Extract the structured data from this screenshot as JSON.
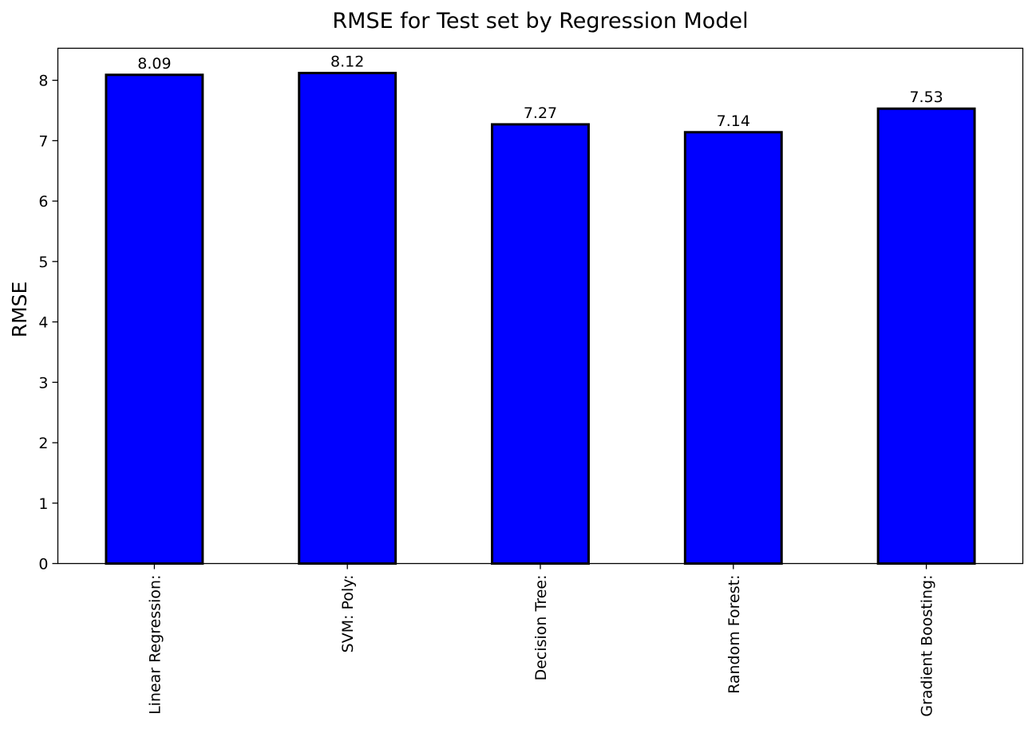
{
  "chart_data": {
    "type": "bar",
    "title": "RMSE for Test set by Regression Model",
    "xlabel": "",
    "ylabel": "RMSE",
    "categories": [
      "Linear Regression:",
      "SVM: Poly:",
      "Decision Tree:",
      "Random Forest:",
      "Gradient Boosting:"
    ],
    "values": [
      8.09,
      8.12,
      7.27,
      7.14,
      7.53
    ],
    "data_labels": [
      "8.09",
      "8.12",
      "7.27",
      "7.14",
      "7.53"
    ],
    "yticks": [
      0,
      1,
      2,
      3,
      4,
      5,
      6,
      7,
      8
    ],
    "ylim": [
      0,
      8.53
    ],
    "grid": false,
    "legend": "none",
    "bar_color": "#0000ff",
    "bar_edge_color": "#000000",
    "x_tick_rotation": "vertical"
  }
}
